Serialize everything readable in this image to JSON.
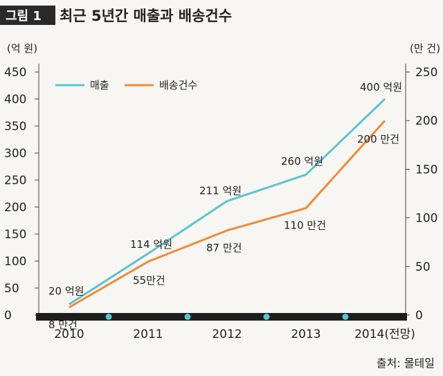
{
  "figure": {
    "badge": "그림 1",
    "title": "최근 5년간 매출과 배송건수",
    "source": "출처: 몰테일"
  },
  "chart_data": {
    "type": "line",
    "title": "최근 5년간 매출과 배송건수",
    "categories": [
      "2010",
      "2011",
      "2012",
      "2013",
      "2014(전망)"
    ],
    "y_left": {
      "unit": "(억 원)",
      "ylim": [
        0,
        450
      ],
      "ticks": [
        "0",
        "50",
        "100",
        "150",
        "200",
        "250",
        "300",
        "350",
        "400",
        "450"
      ]
    },
    "y_right": {
      "unit": "(만 건)",
      "ylim": [
        0,
        250
      ],
      "ticks": [
        "0",
        "50",
        "100",
        "150",
        "200",
        "250"
      ]
    },
    "legend_position": "top-left",
    "series": [
      {
        "name": "매출",
        "axis": "left",
        "color": "#5bc4ce",
        "values": [
          20,
          114,
          211,
          260,
          400
        ],
        "labels": [
          "20 억원",
          "114 억원",
          "211 억원",
          "260 억원",
          "400 억원"
        ]
      },
      {
        "name": "배송건수",
        "axis": "right",
        "color": "#ef8a3c",
        "values": [
          8,
          55,
          87,
          110,
          200
        ],
        "labels": [
          "8 만건",
          "55만건",
          "87 만건",
          "110 만건",
          "200 만건"
        ]
      }
    ]
  }
}
